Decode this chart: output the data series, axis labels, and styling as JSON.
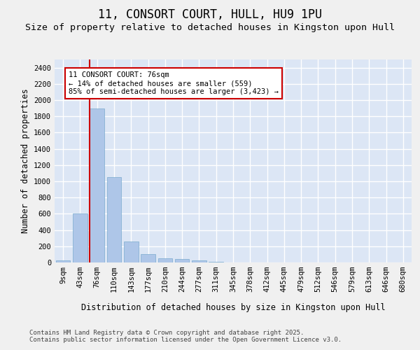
{
  "title": "11, CONSORT COURT, HULL, HU9 1PU",
  "subtitle": "Size of property relative to detached houses in Kingston upon Hull",
  "xlabel": "Distribution of detached houses by size in Kingston upon Hull",
  "ylabel": "Number of detached properties",
  "categories": [
    "9sqm",
    "43sqm",
    "76sqm",
    "110sqm",
    "143sqm",
    "177sqm",
    "210sqm",
    "244sqm",
    "277sqm",
    "311sqm",
    "345sqm",
    "378sqm",
    "412sqm",
    "445sqm",
    "479sqm",
    "512sqm",
    "546sqm",
    "579sqm",
    "613sqm",
    "646sqm",
    "680sqm"
  ],
  "values": [
    25,
    600,
    1900,
    1050,
    260,
    100,
    55,
    40,
    25,
    5,
    0,
    0,
    0,
    0,
    0,
    0,
    0,
    0,
    0,
    0,
    0
  ],
  "bar_color": "#aec6e8",
  "bar_edge_color": "#7aabce",
  "vline_index": 2,
  "vline_color": "#cc0000",
  "annotation_text": "11 CONSORT COURT: 76sqm\n← 14% of detached houses are smaller (559)\n85% of semi-detached houses are larger (3,423) →",
  "ann_box_fc": "#ffffff",
  "ann_box_ec": "#cc0000",
  "ylim": [
    0,
    2500
  ],
  "yticks": [
    0,
    200,
    400,
    600,
    800,
    1000,
    1200,
    1400,
    1600,
    1800,
    2000,
    2200,
    2400
  ],
  "bg_color": "#dce6f5",
  "fig_bg": "#f0f0f0",
  "grid_color": "#ffffff",
  "footer": "Contains HM Land Registry data © Crown copyright and database right 2025.\nContains public sector information licensed under the Open Government Licence v3.0.",
  "title_fs": 12,
  "subtitle_fs": 9.5,
  "axis_label_fs": 8.5,
  "tick_fs": 7.5,
  "footer_fs": 6.5,
  "ann_fs": 7.5
}
